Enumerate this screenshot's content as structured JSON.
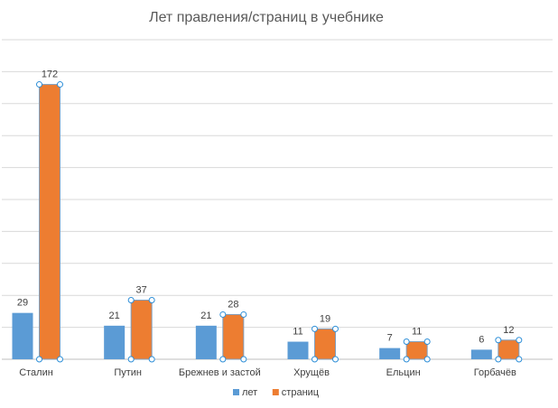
{
  "chart_data": {
    "type": "bar",
    "title": "Лет правления/страниц в учебнике",
    "categories": [
      "Сталин",
      "Путин",
      "Брежнев и застой",
      "Хрущёв",
      "Ельцин",
      "Горбачёв"
    ],
    "series": [
      {
        "name": "лет",
        "values": [
          29,
          21,
          21,
          11,
          7,
          6
        ],
        "color": "#5B9BD5"
      },
      {
        "name": "страниц",
        "values": [
          172,
          37,
          28,
          19,
          11,
          12
        ],
        "color": "#ED7D31"
      }
    ],
    "ylim": [
      0,
      200
    ],
    "grid": true,
    "legend": "bottom-center",
    "data_labels": true,
    "selected_series": "страниц"
  }
}
